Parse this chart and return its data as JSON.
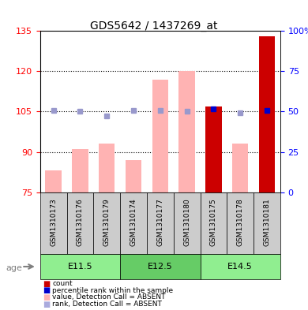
{
  "title": "GDS5642 / 1437269_at",
  "samples": [
    "GSM1310173",
    "GSM1310176",
    "GSM1310179",
    "GSM1310174",
    "GSM1310177",
    "GSM1310180",
    "GSM1310175",
    "GSM1310178",
    "GSM1310181"
  ],
  "age_groups": [
    {
      "label": "E11.5",
      "start": 0,
      "end": 3
    },
    {
      "label": "E12.5",
      "start": 3,
      "end": 6
    },
    {
      "label": "E14.5",
      "start": 6,
      "end": 9
    }
  ],
  "bar_values": [
    83,
    91,
    93,
    87,
    117,
    120,
    107,
    93,
    133
  ],
  "bar_colors": [
    "#FFB3B3",
    "#FFB3B3",
    "#FFB3B3",
    "#FFB3B3",
    "#FFB3B3",
    "#FFB3B3",
    "#CC0000",
    "#FFB3B3",
    "#CC0000"
  ],
  "rank_values": [
    105.5,
    105.0,
    103.5,
    105.5,
    105.5,
    105.0,
    106.0,
    104.5,
    105.5
  ],
  "rank_colors": [
    "#9999CC",
    "#9999CC",
    "#9999CC",
    "#9999CC",
    "#9999CC",
    "#9999CC",
    "#0000CC",
    "#9999CC",
    "#0000CC"
  ],
  "ymin": 75,
  "ymax": 135,
  "yticks_left": [
    75,
    90,
    105,
    120,
    135
  ],
  "yticks_right": [
    0,
    25,
    50,
    75,
    100
  ],
  "yticks_right_labels": [
    "0",
    "25",
    "50",
    "75",
    "100%"
  ],
  "grid_values": [
    90,
    105,
    120
  ],
  "bar_bottom": 75,
  "legend_items": [
    {
      "color": "#CC0000",
      "label": "count"
    },
    {
      "color": "#0000CC",
      "label": "percentile rank within the sample"
    },
    {
      "color": "#FFB3B3",
      "label": "value, Detection Call = ABSENT"
    },
    {
      "color": "#AAAADD",
      "label": "rank, Detection Call = ABSENT"
    }
  ],
  "age_label": "age",
  "age_group_colors": [
    "#90EE90",
    "#66CC66"
  ],
  "plot_bg": "#FFFFFF",
  "sample_bg": "#CCCCCC"
}
